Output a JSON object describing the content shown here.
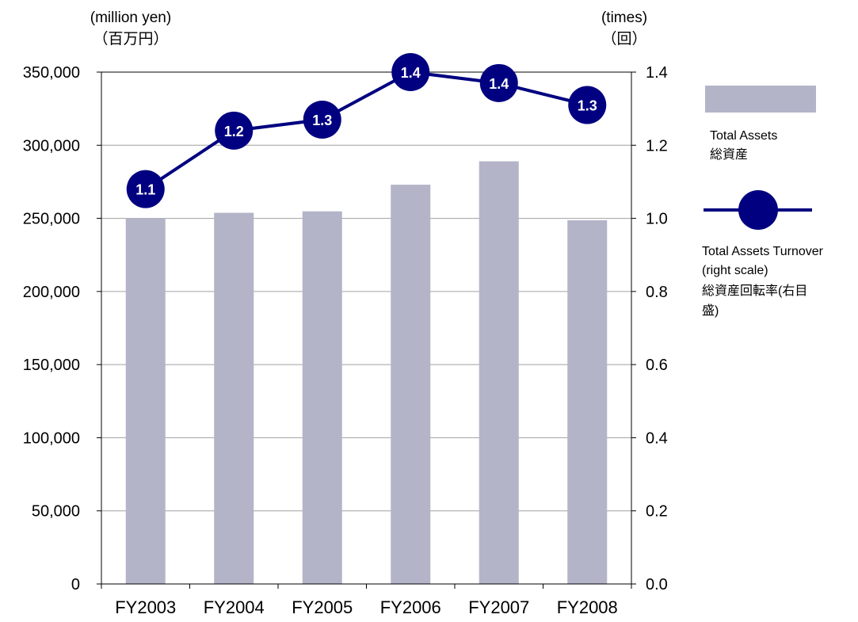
{
  "chart_data": {
    "type": "bar",
    "categories": [
      "FY2003",
      "FY2004",
      "FY2005",
      "FY2006",
      "FY2007",
      "FY2008"
    ],
    "series": [
      {
        "name": "Total Assets",
        "name_ja": "総資産",
        "type": "bar",
        "axis": "left",
        "color": "#b3b4c8",
        "values": [
          250000,
          253800,
          254800,
          273000,
          289000,
          248700
        ]
      },
      {
        "name": "Total Assets Turnover",
        "name_sub": "(right scale)",
        "name_ja": "総資産回転率(右目",
        "name_ja_2": "盛)",
        "type": "line",
        "axis": "right",
        "color": "#000080",
        "values": [
          1.08,
          1.24,
          1.27,
          1.4,
          1.37,
          1.31
        ],
        "labels": [
          "1.1",
          "1.2",
          "1.3",
          "1.4",
          "1.4",
          "1.3"
        ]
      }
    ],
    "left_axis": {
      "unit": "(million yen)",
      "unit_ja": "（百万円）",
      "ylim": [
        0,
        350000
      ],
      "ticks": [
        0,
        50000,
        100000,
        150000,
        200000,
        250000,
        300000,
        350000
      ],
      "tick_labels": [
        "0",
        "50,000",
        "100,000",
        "150,000",
        "200,000",
        "250,000",
        "300,000",
        "350,000"
      ]
    },
    "right_axis": {
      "unit": "(times)",
      "unit_ja": "（回）",
      "ylim": [
        0,
        1.4
      ],
      "ticks": [
        0,
        0.2,
        0.4,
        0.6,
        0.8,
        1.0,
        1.2,
        1.4
      ],
      "tick_labels": [
        "0.0",
        "0.2",
        "0.4",
        "0.6",
        "0.8",
        "1.0",
        "1.2",
        "1.4"
      ]
    },
    "grid": true,
    "legend_position": "right"
  }
}
